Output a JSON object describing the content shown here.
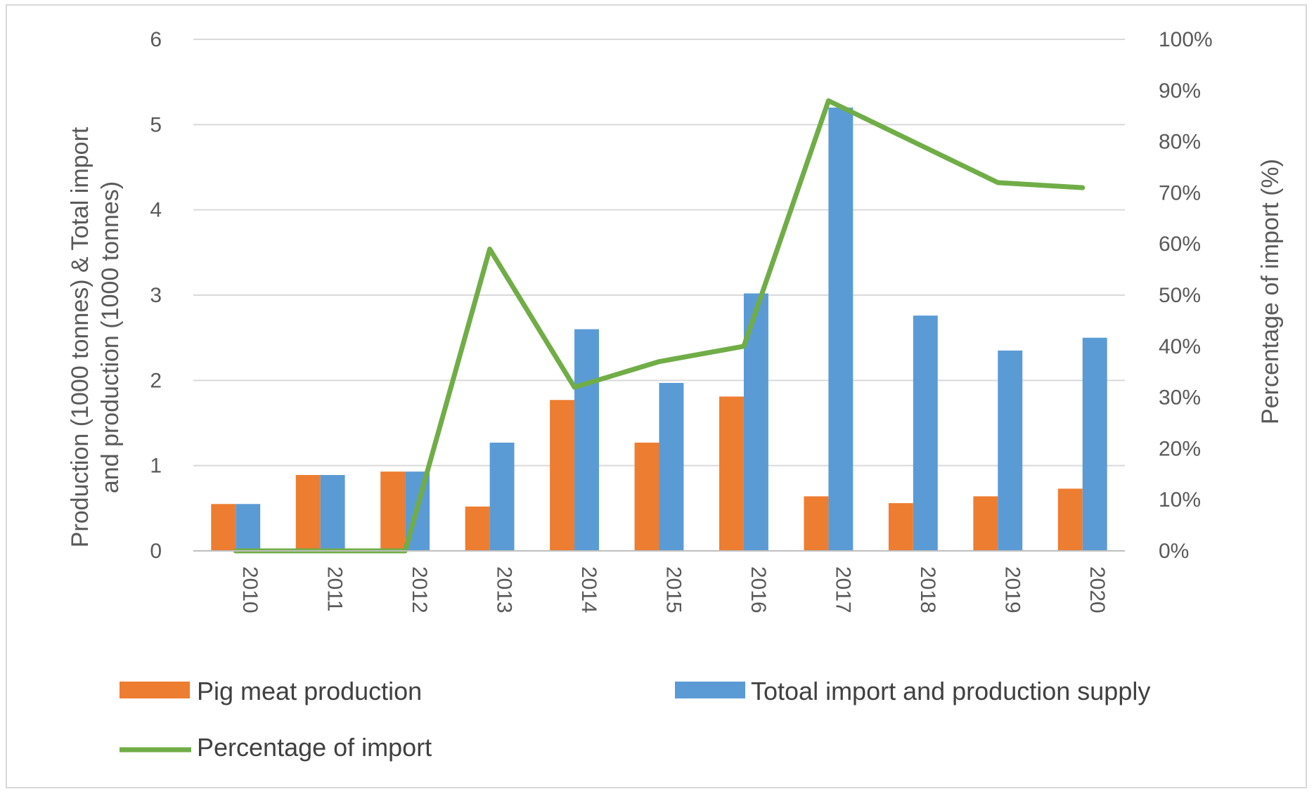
{
  "chart_data": {
    "type": "bar",
    "title": "",
    "categories": [
      "2010",
      "2011",
      "2012",
      "2013",
      "2014",
      "2015",
      "2016",
      "2017",
      "2018",
      "2019",
      "2020"
    ],
    "series": [
      {
        "name": "Pig meat production",
        "type": "bar",
        "axis": "left",
        "color": "#ED7D31",
        "values": [
          0.55,
          0.89,
          0.93,
          0.52,
          1.77,
          1.27,
          1.81,
          0.64,
          0.56,
          0.64,
          0.73
        ]
      },
      {
        "name": "Totoal import and production supply",
        "type": "bar",
        "axis": "left",
        "color": "#5B9BD5",
        "values": [
          0.55,
          0.89,
          0.93,
          1.27,
          2.6,
          1.97,
          3.02,
          5.2,
          2.76,
          2.35,
          2.5
        ]
      },
      {
        "name": "Percentage of import",
        "type": "line",
        "axis": "right",
        "color": "#70AD47",
        "values": [
          0,
          0,
          0,
          59,
          32,
          37,
          40,
          88,
          80,
          72,
          71
        ]
      }
    ],
    "ylabel": "Production (1000 tonnes) & Total import and production (1000 tonnes)",
    "ylabel_lines": [
      "Production (1000 tonnes) & Total import",
      "and production (1000 tonnes)"
    ],
    "y2label": "Percentage of import (%)",
    "ylim": [
      0,
      6
    ],
    "yticks": [
      "0",
      "1",
      "2",
      "3",
      "4",
      "5",
      "6"
    ],
    "y2lim": [
      0,
      100
    ],
    "y2ticks": [
      "0%",
      "10%",
      "20%",
      "30%",
      "40%",
      "50%",
      "60%",
      "70%",
      "80%",
      "90%",
      "100%"
    ],
    "grid": true,
    "legend_position": "bottom"
  }
}
